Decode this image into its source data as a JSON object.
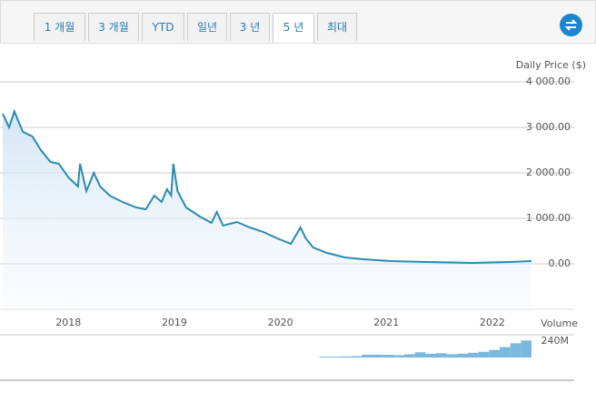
{
  "tabs": [
    "1 개월",
    "3 개월",
    "YTD",
    "일년",
    "3 년",
    "5 년",
    "최대"
  ],
  "active_tab": 5,
  "chart_data": [
    {
      "type": "line",
      "title": "Daily Price ($)",
      "color": "#2a8bb0",
      "x": [
        2017.38,
        2017.44,
        2017.49,
        2017.57,
        2017.66,
        2017.74,
        2017.83,
        2017.91,
        2018.0,
        2018.09,
        2018.11,
        2018.17,
        2018.24,
        2018.3,
        2018.39,
        2018.51,
        2018.64,
        2018.73,
        2018.81,
        2018.88,
        2018.93,
        2018.97,
        2018.99,
        2019.03,
        2019.11,
        2019.24,
        2019.35,
        2019.4,
        2019.46,
        2019.59,
        2019.71,
        2019.84,
        2019.97,
        2020.1,
        2020.19,
        2020.24,
        2020.31,
        2020.44,
        2020.61,
        2020.78,
        2021.04,
        2021.38,
        2021.81,
        2022.16,
        2022.37
      ],
      "values": [
        3300,
        3000,
        3350,
        2900,
        2800,
        2500,
        2240,
        2200,
        1900,
        1700,
        2200,
        1600,
        2000,
        1700,
        1500,
        1360,
        1240,
        1200,
        1500,
        1360,
        1640,
        1500,
        2200,
        1600,
        1240,
        1040,
        900,
        1140,
        840,
        920,
        800,
        700,
        560,
        440,
        800,
        560,
        360,
        240,
        140,
        100,
        60,
        40,
        20,
        40,
        60
      ],
      "xlim": [
        2017.38,
        2022.37
      ],
      "xticks": [
        2018,
        2019,
        2020,
        2021,
        2022
      ],
      "ylim": [
        -1000,
        4000
      ],
      "yticks": [
        {
          "value": 0,
          "label": "0.00"
        },
        {
          "value": 1000,
          "label": "1 000.00"
        },
        {
          "value": 2000,
          "label": "2 000.00"
        },
        {
          "value": 3000,
          "label": "3 000.00"
        },
        {
          "value": 4000,
          "label": "4 000.00"
        }
      ],
      "grid": true
    },
    {
      "type": "bar",
      "title": "Volume",
      "color": "#7ab8de",
      "x": [
        2020.42,
        2020.52,
        2020.62,
        2020.72,
        2020.82,
        2020.92,
        2021.02,
        2021.12,
        2021.22,
        2021.32,
        2021.42,
        2021.52,
        2021.62,
        2021.72,
        2021.82,
        2021.92,
        2022.02,
        2022.12,
        2022.22,
        2022.32
      ],
      "values": [
        10,
        10,
        12,
        15,
        30,
        30,
        28,
        25,
        35,
        55,
        40,
        45,
        35,
        40,
        50,
        60,
        80,
        110,
        150,
        180
      ],
      "xlim": [
        2017.38,
        2022.37
      ],
      "ylim": [
        0,
        240
      ],
      "yticks": [
        {
          "value": 240,
          "label": "240M"
        }
      ]
    }
  ]
}
